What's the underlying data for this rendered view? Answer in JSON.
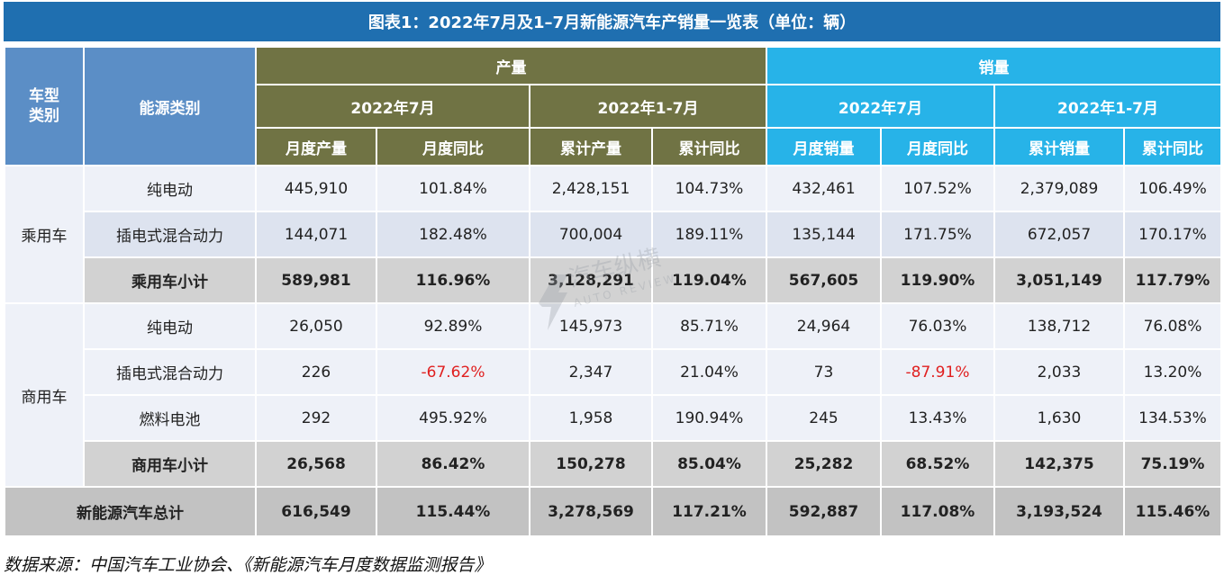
{
  "title": "图表1：2022年7月及1–7月新能源汽车产销量一览表（单位：辆）",
  "headers": {
    "vehicle_type": "车型类别",
    "energy_type": "能源类别",
    "production": "产量",
    "sales": "销量",
    "period_month": "2022年7月",
    "period_ytd": "2022年1-7月",
    "prod_month": "月度产量",
    "prod_month_yoy": "月度同比",
    "prod_ytd": "累计产量",
    "prod_ytd_yoy": "累计同比",
    "sales_month": "月度销量",
    "sales_month_yoy": "月度同比",
    "sales_ytd": "累计销量",
    "sales_ytd_yoy": "累计同比"
  },
  "groups": {
    "passenger": "乘用车",
    "commercial": "商用车"
  },
  "rows": [
    {
      "energy": "纯电动",
      "values": [
        "445,910",
        "101.84%",
        "2,428,151",
        "104.73%",
        "432,461",
        "107.52%",
        "2,379,089",
        "106.49%"
      ]
    },
    {
      "energy": "插电式混合动力",
      "values": [
        "144,071",
        "182.48%",
        "700,004",
        "189.11%",
        "135,144",
        "171.75%",
        "672,057",
        "170.17%"
      ]
    },
    {
      "energy": "乘用车小计",
      "values": [
        "589,981",
        "116.96%",
        "3,128,291",
        "119.04%",
        "567,605",
        "119.90%",
        "3,051,149",
        "117.79%"
      ]
    },
    {
      "energy": "纯电动",
      "values": [
        "26,050",
        "92.89%",
        "145,973",
        "85.71%",
        "24,964",
        "76.03%",
        "138,712",
        "76.08%"
      ]
    },
    {
      "energy": "插电式混合动力",
      "values": [
        "226",
        "-67.62%",
        "2,347",
        "21.04%",
        "73",
        "-87.91%",
        "2,033",
        "13.20%"
      ]
    },
    {
      "energy": "燃料电池",
      "values": [
        "292",
        "495.92%",
        "1,958",
        "190.94%",
        "245",
        "13.43%",
        "1,630",
        "134.53%"
      ]
    },
    {
      "energy": "商用车小计",
      "values": [
        "26,568",
        "86.42%",
        "150,278",
        "85.04%",
        "25,282",
        "68.52%",
        "142,375",
        "75.19%"
      ]
    },
    {
      "energy": "新能源汽车总计",
      "values": [
        "616,549",
        "115.44%",
        "3,278,569",
        "117.21%",
        "592,887",
        "117.08%",
        "3,193,524",
        "115.46%"
      ]
    }
  ],
  "watermark": {
    "cn": "汽车纵横",
    "en": "AUTO REVIEW"
  },
  "source": "数据来源：中国汽车工业协会、《新能源汽车月度数据监测报告》",
  "colors": {
    "title_bg": "#1f6fb0",
    "left_header_bg": "#5b8ec6",
    "production_header_bg": "#707344",
    "sales_header_bg": "#27b3e8",
    "negative_text": "#e02020"
  }
}
